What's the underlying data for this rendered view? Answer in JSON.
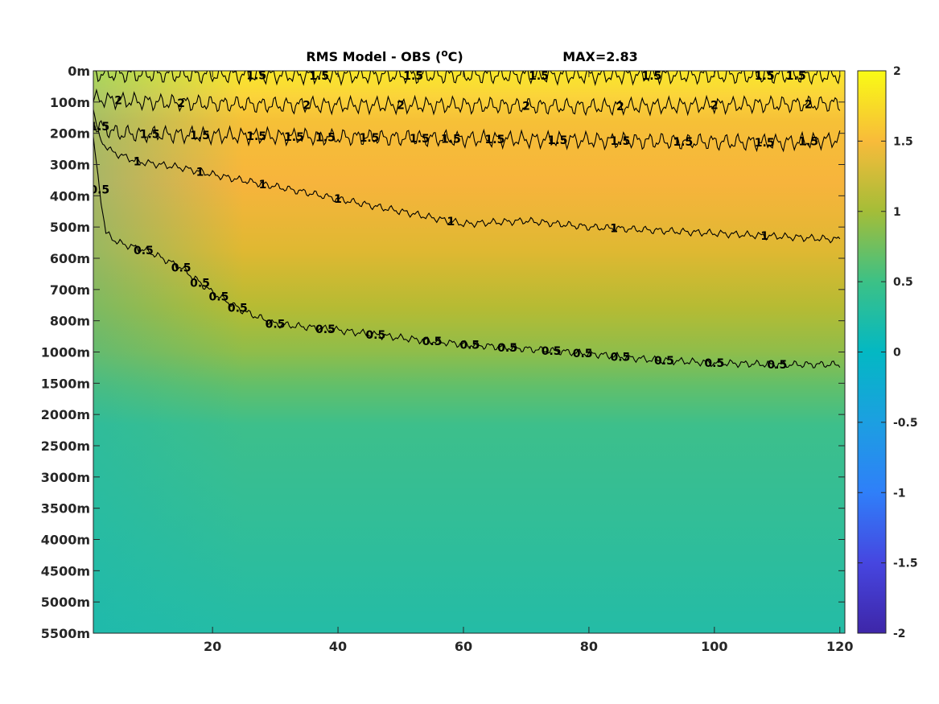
{
  "chart_data": {
    "type": "heatmap",
    "title_main": "RMS Model - OBS (",
    "title_unit_sup": "o",
    "title_unit": "C)",
    "title_max": "MAX=2.83",
    "x_ticks": [
      20,
      40,
      60,
      80,
      100,
      120
    ],
    "xlim": [
      1,
      120.8
    ],
    "y_tick_labels": [
      "0m",
      "100m",
      "200m",
      "300m",
      "400m",
      "500m",
      "600m",
      "700m",
      "800m",
      "1000m",
      "1500m",
      "2000m",
      "2500m",
      "3000m",
      "3500m",
      "4000m",
      "4500m",
      "5000m",
      "5500m"
    ],
    "colorbar": {
      "ticks": [
        2,
        1.5,
        1,
        0.5,
        0,
        -0.5,
        -1,
        -1.5,
        -2
      ],
      "clim": [
        -2,
        2
      ],
      "colormap": "parula"
    },
    "contour_levels": [
      0.5,
      1,
      1.5,
      2
    ],
    "contours": [
      {
        "level": 2,
        "label": "2",
        "label_x": [
          5,
          15,
          35,
          50,
          70,
          85,
          100,
          115
        ],
        "path": [
          [
            1,
            0.9
          ],
          [
            10,
            1.0
          ],
          [
            20,
            1.05
          ],
          [
            30,
            1.1
          ],
          [
            40,
            1.1
          ],
          [
            60,
            1.1
          ],
          [
            80,
            1.15
          ],
          [
            100,
            1.1
          ],
          [
            120,
            1.05
          ]
        ]
      },
      {
        "level": 1.5,
        "label": "1.5",
        "label_x": [
          27,
          37,
          52,
          72,
          90,
          108,
          113
        ],
        "path": [
          [
            1,
            0.1
          ],
          [
            10,
            0.12
          ],
          [
            30,
            0.15
          ],
          [
            60,
            0.15
          ],
          [
            90,
            0.15
          ],
          [
            120,
            0.15
          ]
        ]
      },
      {
        "level": 1.5,
        "label": "1.5",
        "label_x": [
          2,
          10,
          18,
          27,
          33,
          38,
          45,
          53,
          58,
          65,
          75,
          85,
          95,
          108,
          115
        ],
        "path": [
          [
            1,
            1.7
          ],
          [
            5,
            2.0
          ],
          [
            15,
            2.05
          ],
          [
            30,
            2.1
          ],
          [
            50,
            2.15
          ],
          [
            70,
            2.2
          ],
          [
            90,
            2.25
          ],
          [
            110,
            2.3
          ],
          [
            120,
            2.2
          ]
        ]
      },
      {
        "level": 1,
        "label": "1",
        "label_x": [
          8,
          18,
          28,
          40,
          58,
          84,
          108
        ],
        "path": [
          [
            1,
            1.2
          ],
          [
            2,
            2.2
          ],
          [
            4,
            2.6
          ],
          [
            8,
            2.9
          ],
          [
            15,
            3.1
          ],
          [
            22,
            3.4
          ],
          [
            30,
            3.7
          ],
          [
            40,
            4.1
          ],
          [
            50,
            4.5
          ],
          [
            60,
            4.9
          ],
          [
            70,
            4.8
          ],
          [
            80,
            5.0
          ],
          [
            90,
            5.1
          ],
          [
            100,
            5.2
          ],
          [
            110,
            5.3
          ],
          [
            120,
            5.4
          ]
        ]
      },
      {
        "level": 0.5,
        "label": "0.5",
        "label_x": [
          2,
          9,
          15,
          18,
          21,
          24,
          30,
          38,
          46,
          55,
          61,
          67,
          74,
          79,
          85,
          92,
          100,
          110
        ],
        "path": [
          [
            1,
            2.2
          ],
          [
            2,
            3.8
          ],
          [
            3,
            5.2
          ],
          [
            5,
            5.5
          ],
          [
            10,
            5.8
          ],
          [
            15,
            6.3
          ],
          [
            20,
            7.1
          ],
          [
            25,
            7.7
          ],
          [
            30,
            8.1
          ],
          [
            40,
            8.3
          ],
          [
            50,
            8.55
          ],
          [
            60,
            8.75
          ],
          [
            70,
            8.9
          ],
          [
            80,
            9.05
          ],
          [
            90,
            9.25
          ],
          [
            100,
            9.35
          ],
          [
            110,
            9.4
          ],
          [
            120,
            9.4
          ]
        ]
      }
    ]
  }
}
